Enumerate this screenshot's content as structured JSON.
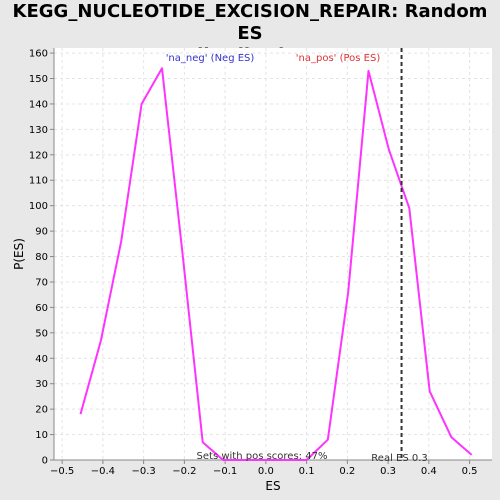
{
  "chart_data": {
    "type": "line",
    "title_lines": [
      "KEGG_NUCLEOTIDE_EXCISION_REPAIR: Random ES",
      "distribution"
    ],
    "xlabel": "ES",
    "ylabel": "P(ES)",
    "xlim": [
      -0.52,
      0.555
    ],
    "ylim": [
      0,
      162
    ],
    "xticks": [
      -0.5,
      -0.4,
      -0.3,
      -0.2,
      -0.1,
      0.0,
      0.1,
      0.2,
      0.3,
      0.4,
      0.5
    ],
    "xtick_labels": [
      "−0.5",
      "−0.4",
      "−0.3",
      "−0.2",
      "−0.1",
      "0.0",
      "0.1",
      "0.2",
      "0.3",
      "0.4",
      "0.5"
    ],
    "yticks": [
      0,
      10,
      20,
      30,
      40,
      50,
      60,
      70,
      80,
      90,
      100,
      110,
      120,
      130,
      140,
      150,
      160
    ],
    "grid": true,
    "series": [
      {
        "color": "#ff33ff",
        "x": [
          -0.455,
          -0.405,
          -0.355,
          -0.305,
          -0.255,
          -0.205,
          -0.155,
          -0.105,
          -0.055,
          0.0,
          0.05,
          0.1,
          0.152,
          0.202,
          0.252,
          0.302,
          0.352,
          0.402,
          0.455,
          0.505
        ],
        "y": [
          18,
          47,
          86,
          140,
          154,
          82,
          7,
          0,
          0,
          0,
          0,
          0,
          8,
          66,
          153,
          122,
          99,
          27,
          9,
          2
        ]
      }
    ],
    "annotations": {
      "neg_label": "'na_neg' (Neg ES)",
      "pos_label": "'na_pos' (Pos ES)",
      "sets_with_pos": "Sets with pos scores: 47%",
      "real_es": "Real ES 0.3",
      "real_es_value": 0.333
    },
    "colors": {
      "neg": "#3333cc",
      "pos": "#dd3333",
      "marker_line": "#333333"
    }
  }
}
